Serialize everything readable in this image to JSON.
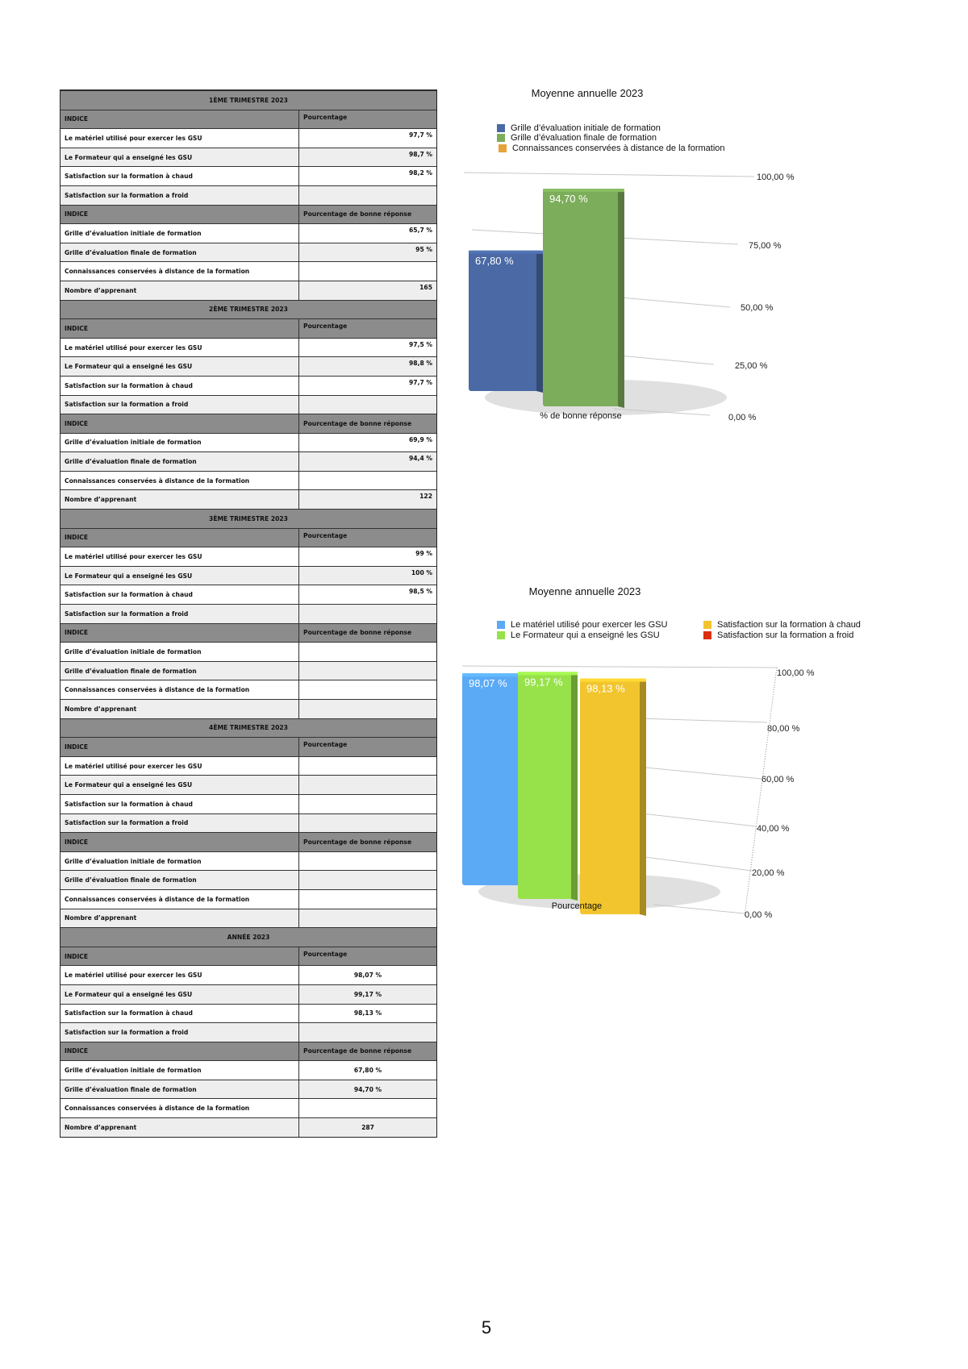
{
  "tables": [
    {
      "title": "1ÈME TRIMESTRE 2023",
      "annual": false,
      "head1": [
        "INDICE",
        "Pourcentage"
      ],
      "rows1": [
        [
          "Le matériel utilisé pour exercer les GSU",
          "97,7 %"
        ],
        [
          "Le Formateur qui a enseigné les GSU",
          "98,7 %"
        ],
        [
          "Satisfaction sur la formation à chaud",
          "98,2 %"
        ],
        [
          "Satisfaction sur la formation a froid",
          ""
        ]
      ],
      "head2": [
        "INDICE",
        "Pourcentage de bonne réponse"
      ],
      "rows2": [
        [
          "Grille d’évaluation initiale de formation",
          "65,7 %"
        ],
        [
          "Grille d’évaluation finale de formation",
          "95 %"
        ],
        [
          "Connaissances conservées à distance de la formation",
          ""
        ],
        [
          "Nombre d’apprenant",
          "165"
        ]
      ]
    },
    {
      "title": "2ÈME TRIMESTRE 2023",
      "annual": false,
      "head1": [
        "INDICE",
        "Pourcentage"
      ],
      "rows1": [
        [
          "Le matériel utilisé pour exercer les GSU",
          "97,5 %"
        ],
        [
          "Le Formateur qui a enseigné les GSU",
          "98,8 %"
        ],
        [
          "Satisfaction sur la formation à chaud",
          "97,7 %"
        ],
        [
          "Satisfaction sur la formation a froid",
          ""
        ]
      ],
      "head2": [
        "INDICE",
        "Pourcentage de bonne réponse"
      ],
      "rows2": [
        [
          "Grille d’évaluation initiale de formation",
          "69,9 %"
        ],
        [
          "Grille d’évaluation finale de formation",
          "94,4 %"
        ],
        [
          "Connaissances conservées à distance de la formation",
          ""
        ],
        [
          "Nombre d’apprenant",
          "122"
        ]
      ]
    },
    {
      "title": "3ÈME TRIMESTRE 2023",
      "annual": false,
      "head1": [
        "INDICE",
        "Pourcentage"
      ],
      "rows1": [
        [
          "Le matériel utilisé pour exercer les GSU",
          "99 %"
        ],
        [
          "Le Formateur qui a enseigné les GSU",
          "100 %"
        ],
        [
          "Satisfaction sur la formation à chaud",
          "98,5 %"
        ],
        [
          "Satisfaction sur la formation a froid",
          ""
        ]
      ],
      "head2": [
        "INDICE",
        "Pourcentage de bonne réponse"
      ],
      "rows2": [
        [
          "Grille d’évaluation initiale de formation",
          ""
        ],
        [
          "Grille d’évaluation finale de formation",
          ""
        ],
        [
          "Connaissances conservées à distance de la formation",
          ""
        ],
        [
          "Nombre d’apprenant",
          ""
        ]
      ]
    },
    {
      "title": "4ÈME TRIMESTRE 2023",
      "annual": false,
      "head1": [
        "INDICE",
        "Pourcentage"
      ],
      "rows1": [
        [
          "Le matériel utilisé pour exercer les GSU",
          ""
        ],
        [
          "Le Formateur qui a enseigné les GSU",
          ""
        ],
        [
          "Satisfaction sur la formation à chaud",
          ""
        ],
        [
          "Satisfaction sur la formation a froid",
          ""
        ]
      ],
      "head2": [
        "INDICE",
        "Pourcentage de bonne réponse"
      ],
      "rows2": [
        [
          "Grille d’évaluation initiale de formation",
          ""
        ],
        [
          "Grille d’évaluation finale de formation",
          ""
        ],
        [
          "Connaissances conservées à distance de la formation",
          ""
        ],
        [
          "Nombre d’apprenant",
          ""
        ]
      ]
    },
    {
      "title": "ANNÉE 2023",
      "annual": true,
      "head1": [
        "INDICE",
        "Pourcentage"
      ],
      "rows1": [
        [
          "Le matériel utilisé pour exercer les GSU",
          "98,07 %"
        ],
        [
          "Le Formateur qui a enseigné les GSU",
          "99,17 %"
        ],
        [
          "Satisfaction sur la formation à chaud",
          "98,13 %"
        ],
        [
          "Satisfaction sur la formation a froid",
          ""
        ]
      ],
      "head2": [
        "INDICE",
        "Pourcentage de bonne réponse"
      ],
      "rows2": [
        [
          "Grille d’évaluation initiale de formation",
          "67,80 %"
        ],
        [
          "Grille d’évaluation finale de formation",
          "94,70 %"
        ],
        [
          "Connaissances conservées à distance de la formation",
          ""
        ],
        [
          "Nombre d’apprenant",
          "287"
        ]
      ]
    }
  ],
  "chart_data": [
    {
      "type": "bar",
      "title": "Moyenne annuelle 2023",
      "categories": [
        "% de bonne réponse"
      ],
      "series": [
        {
          "name": "Grille d’évaluation initiale de formation",
          "values": [
            67.8
          ],
          "label": "67,80 %",
          "color": "#4a69a5"
        },
        {
          "name": "Grille d’évaluation finale de formation",
          "values": [
            94.7
          ],
          "label": "94,70 %",
          "color": "#7cad5a"
        },
        {
          "name": "Connaissances conservées à distance de la formation",
          "values": [
            null
          ],
          "label": "",
          "color": "#e8a23a"
        }
      ],
      "ylim": [
        0,
        100
      ],
      "yticks": [
        "0,00 %",
        "25,00 %",
        "50,00 %",
        "75,00 %",
        "100,00 %"
      ],
      "ytick_values": [
        0,
        25,
        50,
        75,
        100
      ],
      "grid": true,
      "legend": "top-left",
      "style": "3d"
    },
    {
      "type": "bar",
      "title": "Moyenne annuelle 2023",
      "categories": [
        "Pourcentage"
      ],
      "series": [
        {
          "name": "Le matériel utilisé pour exercer les GSU",
          "values": [
            98.07
          ],
          "label": "98,07 %",
          "color": "#5aaaf6"
        },
        {
          "name": "Le Formateur qui a enseigné les GSU",
          "values": [
            99.17
          ],
          "label": "99,17 %",
          "color": "#97e24a"
        },
        {
          "name": "Satisfaction sur la formation à chaud",
          "values": [
            98.13
          ],
          "label": "98,13 %",
          "color": "#f2c52e"
        },
        {
          "name": "Satisfaction sur la formation a froid",
          "values": [
            null
          ],
          "label": "",
          "color": "#d9300f"
        }
      ],
      "ylim": [
        0,
        100
      ],
      "yticks": [
        "0,00 %",
        "20,00 %",
        "40,00 %",
        "60,00 %",
        "80,00 %",
        "100,00 %"
      ],
      "ytick_values": [
        0,
        20,
        40,
        60,
        80,
        100
      ],
      "grid": true,
      "legend": "top",
      "style": "3d"
    }
  ],
  "page_number": "5"
}
